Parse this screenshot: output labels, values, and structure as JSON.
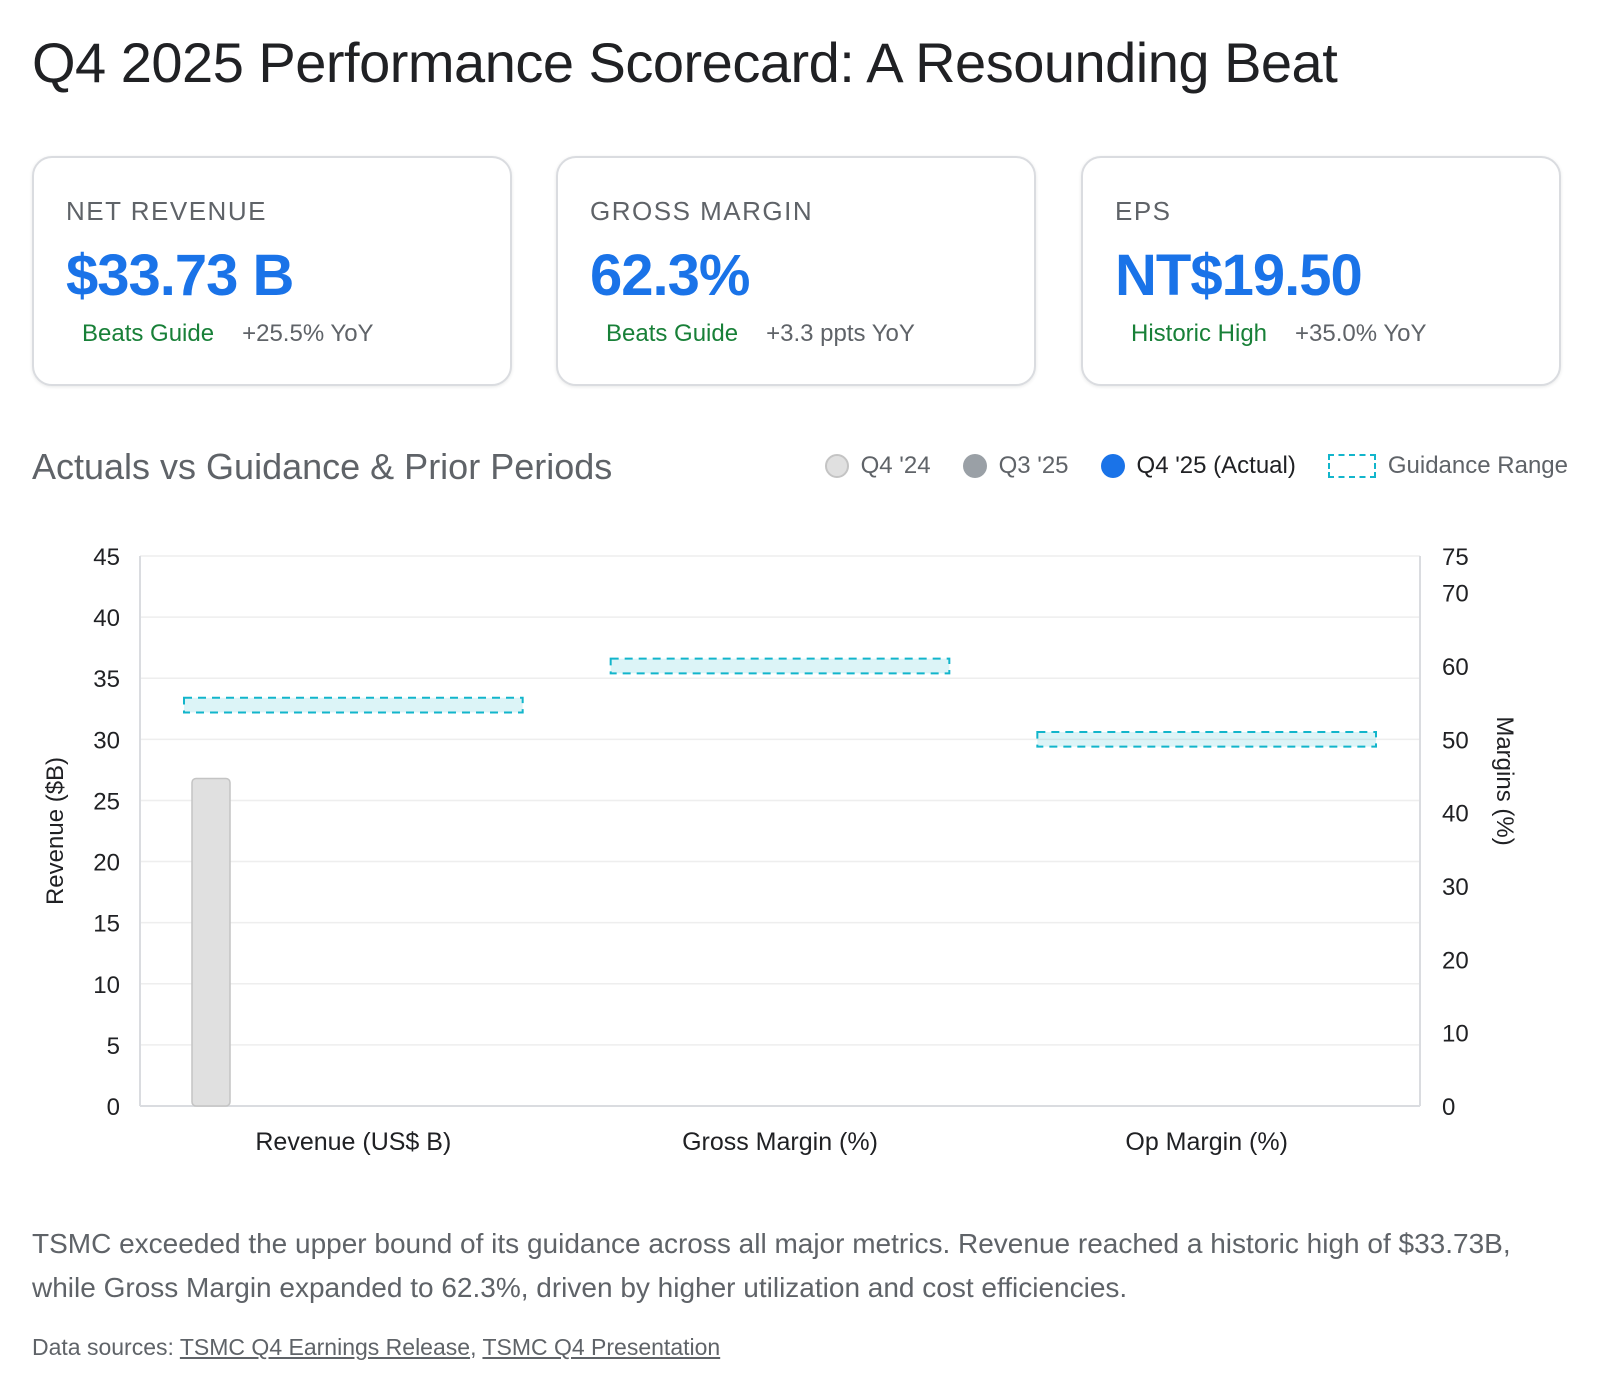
{
  "title": "Q4 2025 Performance Scorecard: A Resounding Beat",
  "cards": [
    {
      "label": "NET REVENUE",
      "value": "$33.73 B",
      "tag": "Beats Guide",
      "yoy": "+25.5% YoY"
    },
    {
      "label": "GROSS MARGIN",
      "value": "62.3%",
      "tag": "Beats Guide",
      "yoy": "+3.3 ppts YoY"
    },
    {
      "label": "EPS",
      "value": "NT$19.50",
      "tag": "Historic High",
      "yoy": "+35.0% YoY"
    }
  ],
  "section_title": "Actuals vs Guidance & Prior Periods",
  "legend": [
    {
      "label": "Q4 '24",
      "color": "#dadce0"
    },
    {
      "label": "Q3 '25",
      "color": "#9aa0a6"
    },
    {
      "label": "Q4 '25 (Actual)",
      "color": "#1a73e8"
    },
    {
      "label": "Guidance Range",
      "color": "#12b5cb"
    }
  ],
  "chart_data": {
    "type": "bar",
    "categories": [
      "Revenue (US$ B)",
      "Gross Margin (%)",
      "Op Margin (%)"
    ],
    "ylabel": "Revenue ($B)",
    "ylim": [
      0,
      45
    ],
    "yticks": [
      0,
      5,
      10,
      15,
      20,
      25,
      30,
      35,
      40,
      45
    ],
    "y2label": "Margins (%)",
    "y2lim": [
      0,
      75
    ],
    "y2ticks": [
      0,
      10,
      20,
      30,
      40,
      50,
      60,
      70,
      75
    ],
    "grid": true,
    "series": [
      {
        "name": "Q4 '24",
        "color": "#e0e0e0",
        "stroke": "#c4c4c4",
        "values": [
          26.8,
          null,
          null
        ]
      }
    ],
    "guidance": [
      {
        "category": "Revenue (US$ B)",
        "low": 32.2,
        "high": 33.4,
        "axis": "left"
      },
      {
        "category": "Gross Margin (%)",
        "low": 59.0,
        "high": 61.0,
        "axis": "right"
      },
      {
        "category": "Op Margin (%)",
        "low": 49.0,
        "high": 51.0,
        "axis": "right"
      }
    ],
    "guidance_color": "#12b5cb"
  },
  "summary": "TSMC exceeded the upper bound of its guidance across all major metrics. Revenue reached a historic high of $33.73B, while Gross Margin expanded to 62.3%, driven by higher utilization and cost efficiencies.",
  "sources": {
    "prefix": "Data sources: ",
    "links": [
      "TSMC Q4 Earnings Release",
      "TSMC Q4 Presentation"
    ],
    "separator": ", "
  }
}
